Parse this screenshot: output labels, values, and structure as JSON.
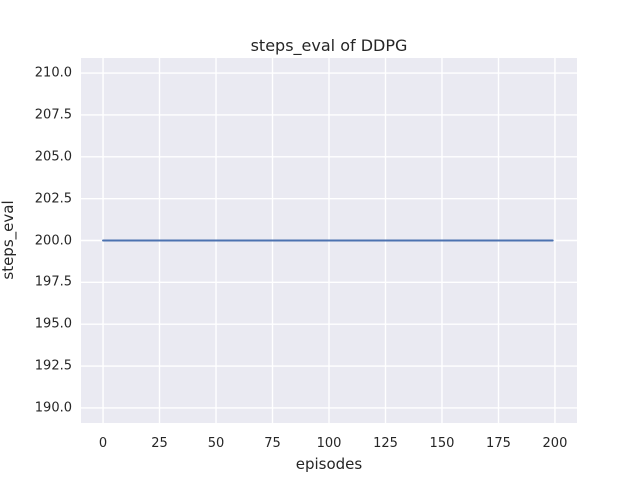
{
  "chart_data": {
    "type": "line",
    "title": "steps_eval of DDPG",
    "xlabel": "episodes",
    "ylabel": "steps_eval",
    "xticks": [
      0,
      25,
      50,
      75,
      100,
      125,
      150,
      175,
      200
    ],
    "xtick_labels": [
      "0",
      "25",
      "50",
      "75",
      "100",
      "125",
      "150",
      "175",
      "200"
    ],
    "yticks": [
      190.0,
      192.5,
      195.0,
      197.5,
      200.0,
      202.5,
      205.0,
      207.5,
      210.0
    ],
    "ytick_labels": [
      "190.0",
      "192.5",
      "195.0",
      "197.5",
      "200.0",
      "202.5",
      "205.0",
      "207.5",
      "210.0"
    ],
    "xlim": [
      -9.75,
      209.75
    ],
    "ylim": [
      189.1,
      210.9
    ],
    "grid": true,
    "legend": "none",
    "series": [
      {
        "name": "steps_eval",
        "color": "#4c72b0",
        "x": [
          0,
          199
        ],
        "y": [
          200,
          200
        ]
      }
    ],
    "colors": {
      "figure_background": "#ffffff",
      "axes_background": "#eaeaf2",
      "gridline": "#ffffff",
      "text": "#262626"
    }
  }
}
